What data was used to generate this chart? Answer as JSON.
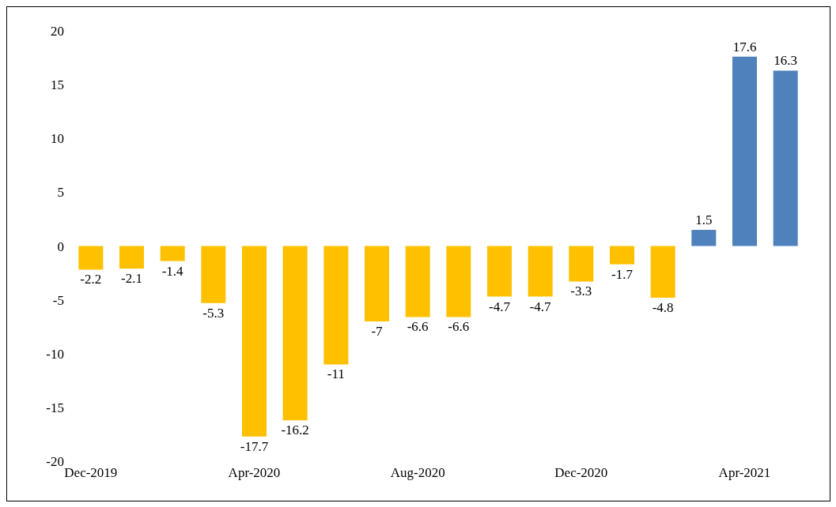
{
  "chart_data": {
    "type": "bar",
    "categories": [
      "Dec-2019",
      null,
      null,
      null,
      "Apr-2020",
      null,
      null,
      null,
      "Aug-2020",
      null,
      null,
      null,
      "Dec-2020",
      null,
      null,
      null,
      "Apr-2021",
      null
    ],
    "values": [
      -2.2,
      -2.1,
      -1.4,
      -5.3,
      -17.7,
      -16.2,
      -11,
      -7,
      -6.6,
      -6.6,
      -4.7,
      -4.7,
      -3.3,
      -1.7,
      -4.8,
      1.5,
      17.6,
      16.3
    ],
    "colors": [
      "#ffc000",
      "#ffc000",
      "#ffc000",
      "#ffc000",
      "#ffc000",
      "#ffc000",
      "#ffc000",
      "#ffc000",
      "#ffc000",
      "#ffc000",
      "#ffc000",
      "#ffc000",
      "#ffc000",
      "#ffc000",
      "#ffc000",
      "#4f81bd",
      "#4f81bd",
      "#4f81bd"
    ],
    "ylim": [
      -20,
      20
    ],
    "yticks": [
      -20,
      -15,
      -10,
      -5,
      0,
      5,
      10,
      15,
      20
    ],
    "data_labels": true,
    "grid": false,
    "legend": false
  }
}
